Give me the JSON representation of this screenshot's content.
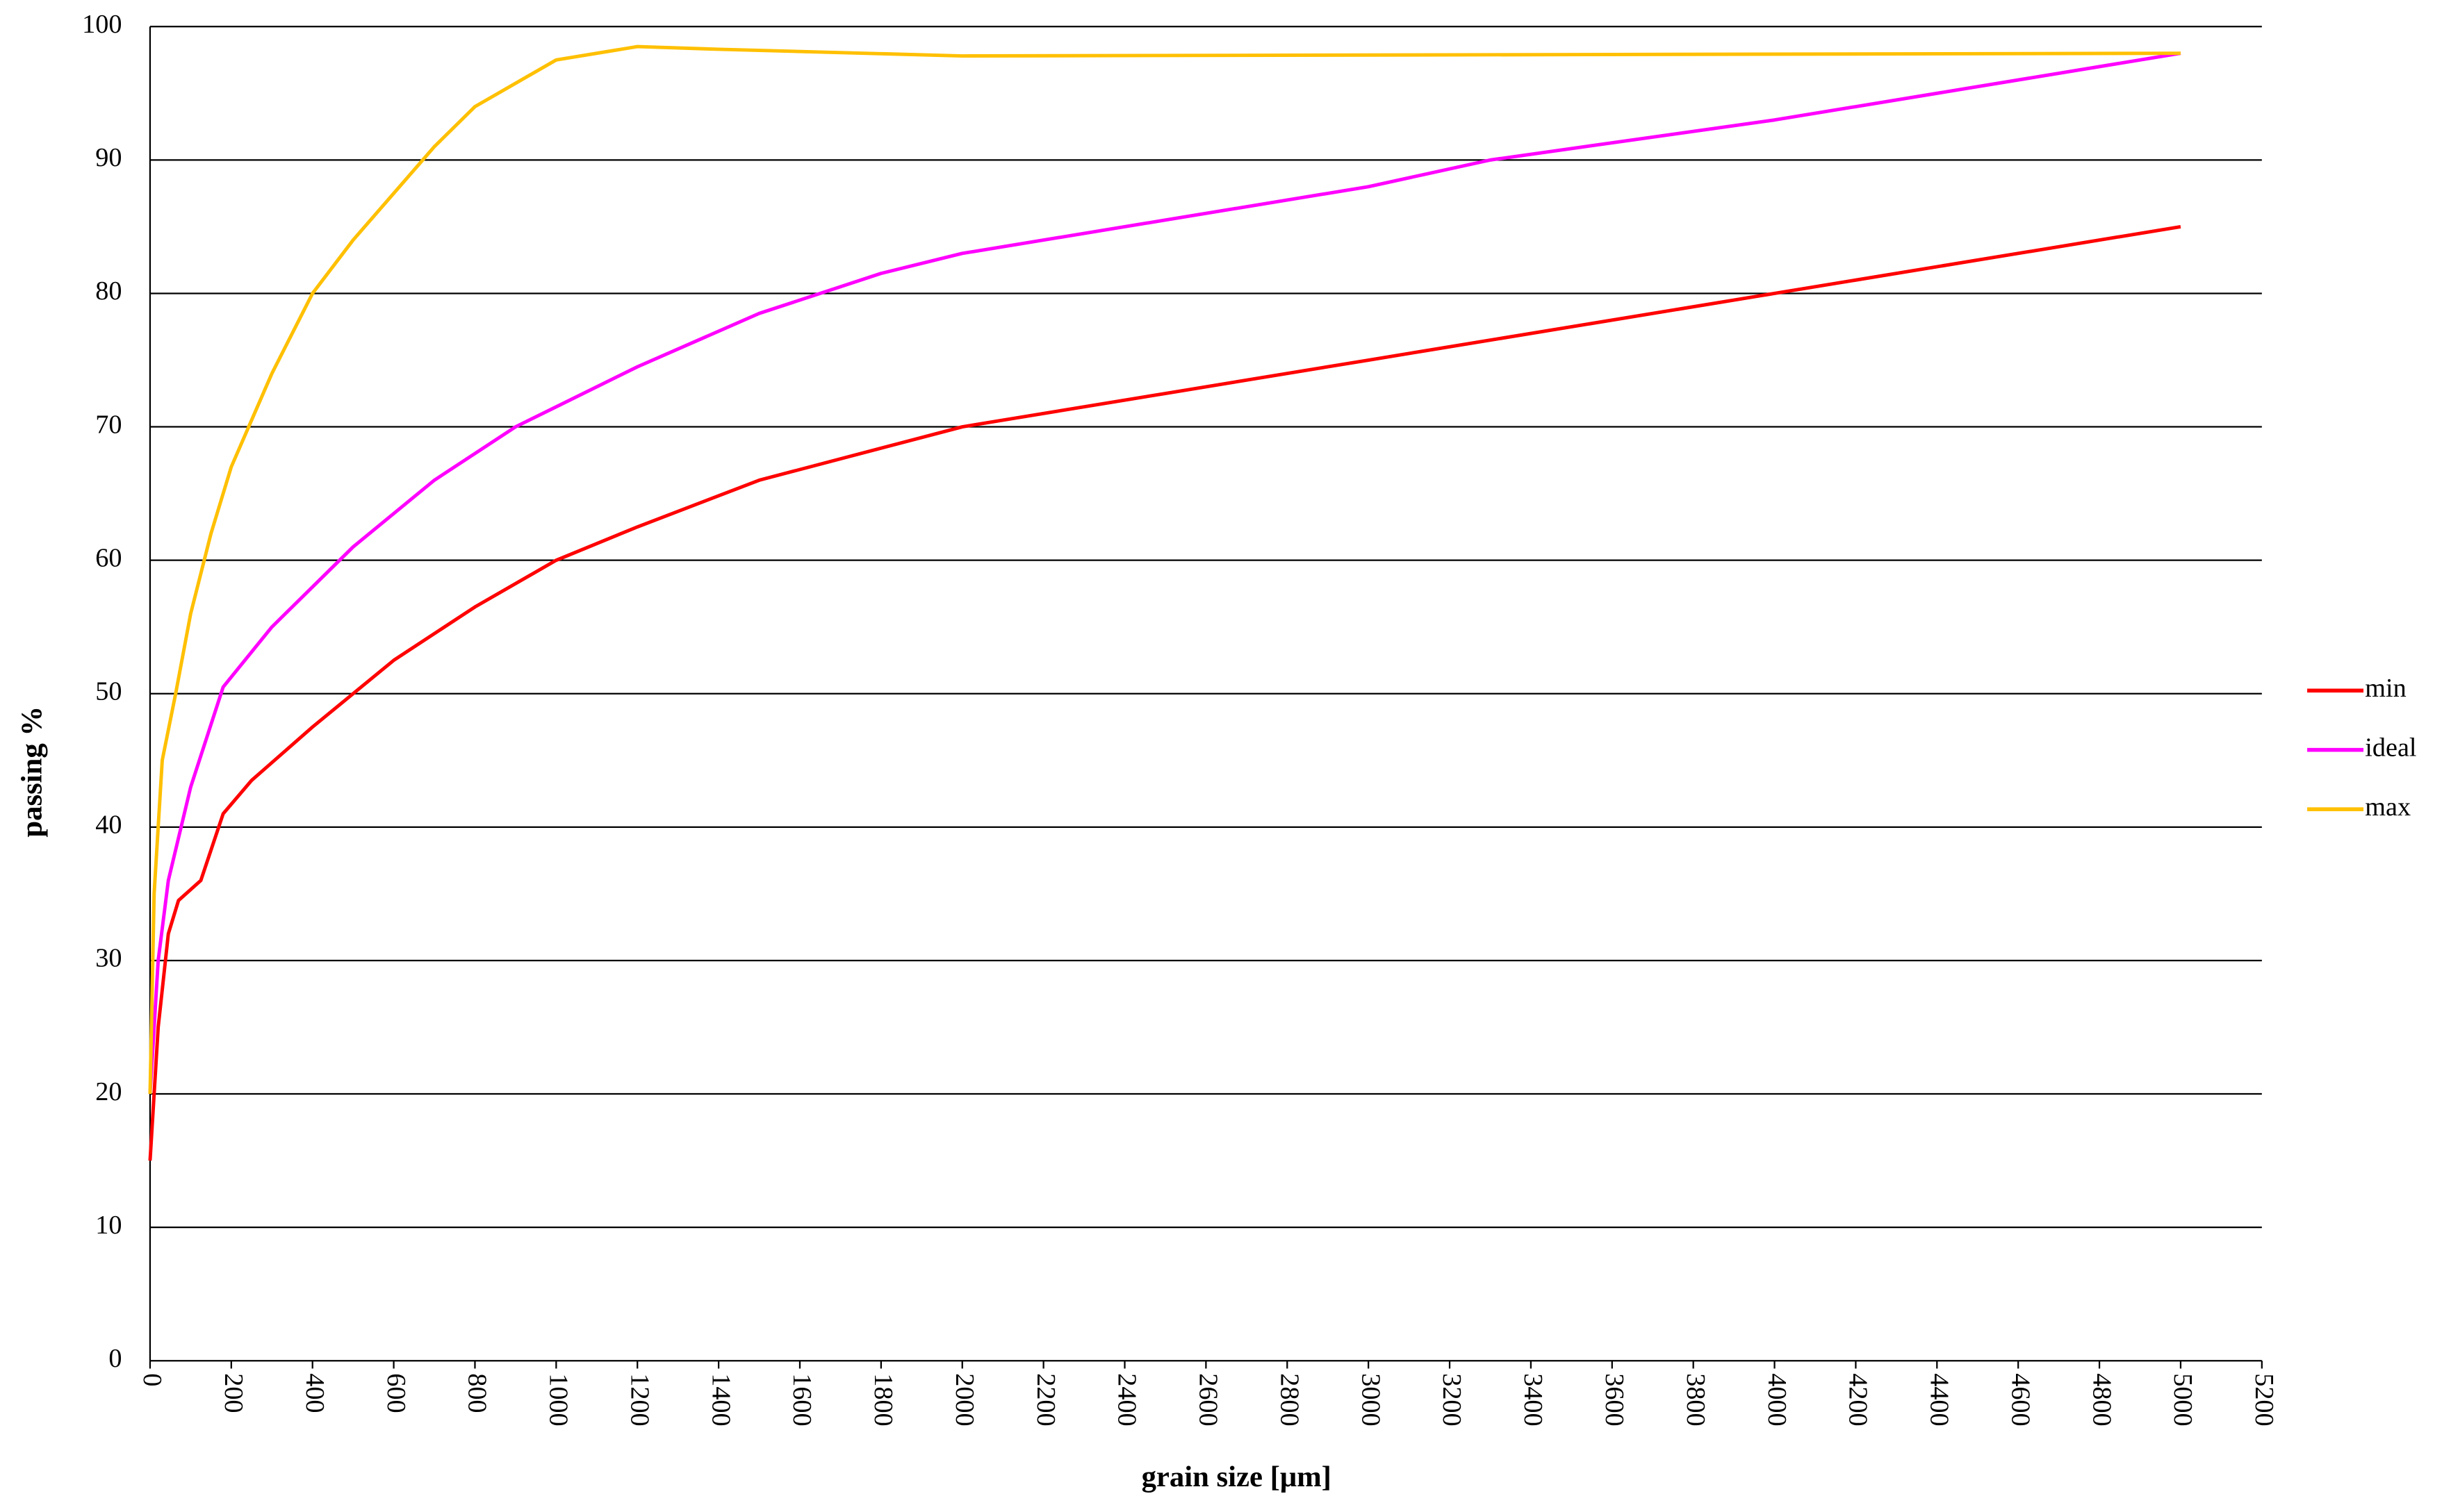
{
  "chart_data": {
    "type": "line",
    "x_label": "grain size [μm]",
    "y_label": "passing %",
    "xlim": [
      0,
      5200
    ],
    "xticks": [
      0,
      200,
      400,
      600,
      800,
      1000,
      1200,
      1400,
      1600,
      1800,
      2000,
      2200,
      2400,
      2600,
      2800,
      3000,
      3200,
      3400,
      3600,
      3800,
      4000,
      4200,
      4400,
      4600,
      4800,
      5000,
      5200
    ],
    "ylim": [
      0,
      100
    ],
    "yticks": [
      0,
      10,
      20,
      30,
      40,
      50,
      60,
      70,
      80,
      90,
      100
    ],
    "grid": true,
    "legend": "right",
    "series": [
      {
        "name": "min",
        "color": "#ff0000",
        "x": [
          0,
          20,
          45,
          70,
          125,
          180,
          250,
          400,
          500,
          600,
          800,
          1000,
          1200,
          1500,
          2000,
          2500,
          3000,
          4000,
          5000
        ],
        "values": [
          15,
          25,
          32,
          34.5,
          36,
          41,
          43.5,
          47.5,
          50,
          52.5,
          56.5,
          60,
          62.5,
          66,
          70,
          72.5,
          75,
          80,
          85
        ]
      },
      {
        "name": "ideal",
        "color": "#ff00ff",
        "x": [
          0,
          20,
          45,
          100,
          180,
          300,
          500,
          700,
          900,
          1000,
          1200,
          1500,
          1800,
          2000,
          2500,
          3000,
          3300,
          4000,
          5000
        ],
        "values": [
          20,
          30,
          36,
          43,
          50.5,
          55,
          61,
          66,
          70,
          71.5,
          74.5,
          78.5,
          81.5,
          83,
          85.5,
          88,
          90,
          93,
          98
        ]
      },
      {
        "name": "max",
        "color": "#ffc000",
        "x": [
          0,
          10,
          30,
          63,
          100,
          150,
          200,
          300,
          400,
          500,
          600,
          700,
          800,
          1000,
          1200,
          1400,
          2000,
          5000
        ],
        "values": [
          20,
          35,
          45,
          50,
          56,
          62,
          67,
          74,
          80,
          84,
          87.5,
          91,
          94,
          97.5,
          98.5,
          98.3,
          97.8,
          98
        ]
      }
    ]
  }
}
